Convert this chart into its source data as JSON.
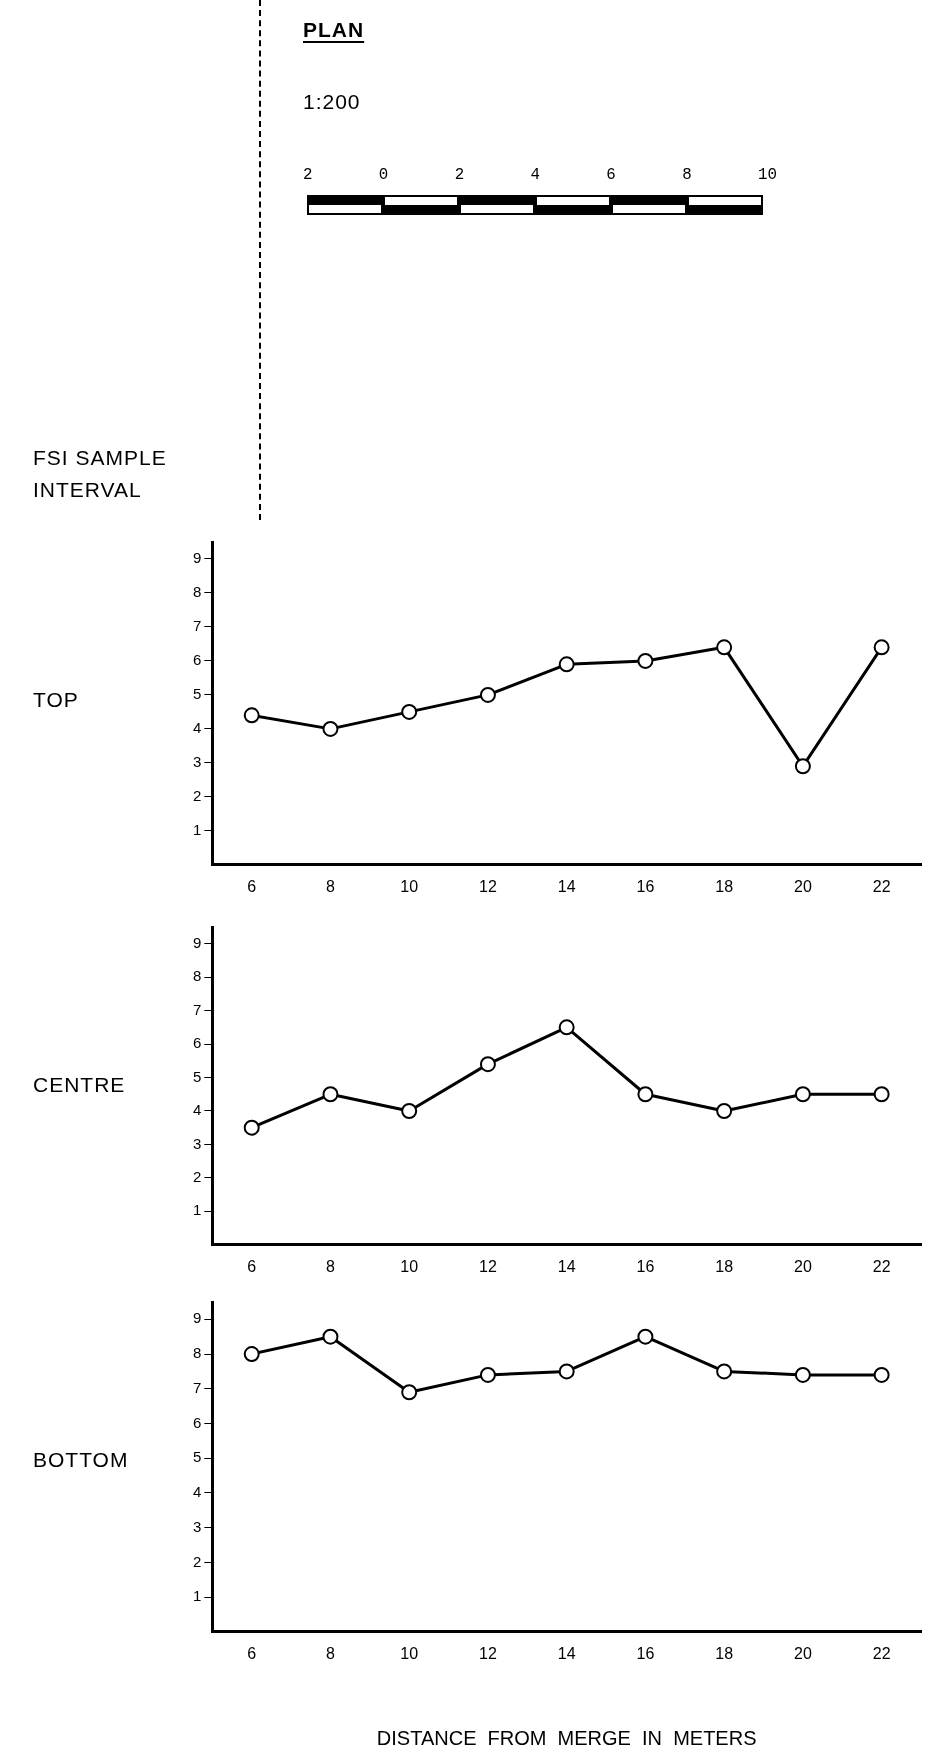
{
  "chart_data": [
    {
      "type": "other",
      "title": "PLAN",
      "annotations": [
        "1:200",
        "2       0       2       4       6       8       10",
        "FSI SAMPLE INTERVAL"
      ]
    },
    {
      "type": "line",
      "title": "TOP",
      "categories": [
        "6",
        "8",
        "10",
        "12",
        "14",
        "16",
        "18",
        "20",
        "22"
      ],
      "series": [
        {
          "color": "#000000",
          "values": [
            4.4,
            4.0,
            4.5,
            5.0,
            5.9,
            6.0,
            6.4,
            2.9,
            6.4
          ]
        }
      ],
      "ylim": [
        0,
        9.5
      ],
      "yticks": [
        1,
        2,
        3,
        4,
        5,
        6,
        7,
        8,
        9
      ],
      "grid": false,
      "legend": false,
      "marker": "circle",
      "line_style": "solid"
    },
    {
      "type": "line",
      "title": "CENTRE",
      "categories": [
        "6",
        "8",
        "10",
        "12",
        "14",
        "16",
        "18",
        "20",
        "22"
      ],
      "series": [
        {
          "color": "#000000",
          "values": [
            3.5,
            4.5,
            4.0,
            5.4,
            6.5,
            4.5,
            4.0,
            4.5,
            4.5
          ]
        }
      ],
      "ylim": [
        0,
        9.5
      ],
      "yticks": [
        1,
        2,
        3,
        4,
        5,
        6,
        7,
        8,
        9
      ],
      "grid": false,
      "legend": false,
      "marker": "circle",
      "line_style": "solid"
    },
    {
      "type": "line",
      "title": "BOTTOM",
      "xlabel": "DISTANCE  FROM  MERGE  IN  METERS",
      "categories": [
        "6",
        "8",
        "10",
        "12",
        "14",
        "16",
        "18",
        "20",
        "22"
      ],
      "series": [
        {
          "color": "#000000",
          "values": [
            8.0,
            8.5,
            6.9,
            7.4,
            7.5,
            8.5,
            7.5,
            7.4,
            7.4
          ]
        }
      ],
      "ylim": [
        0,
        9.5
      ],
      "yticks": [
        1,
        2,
        3,
        4,
        5,
        6,
        7,
        8,
        9
      ],
      "grid": false,
      "legend": false,
      "marker": "circle",
      "line_style": "solid"
    }
  ]
}
